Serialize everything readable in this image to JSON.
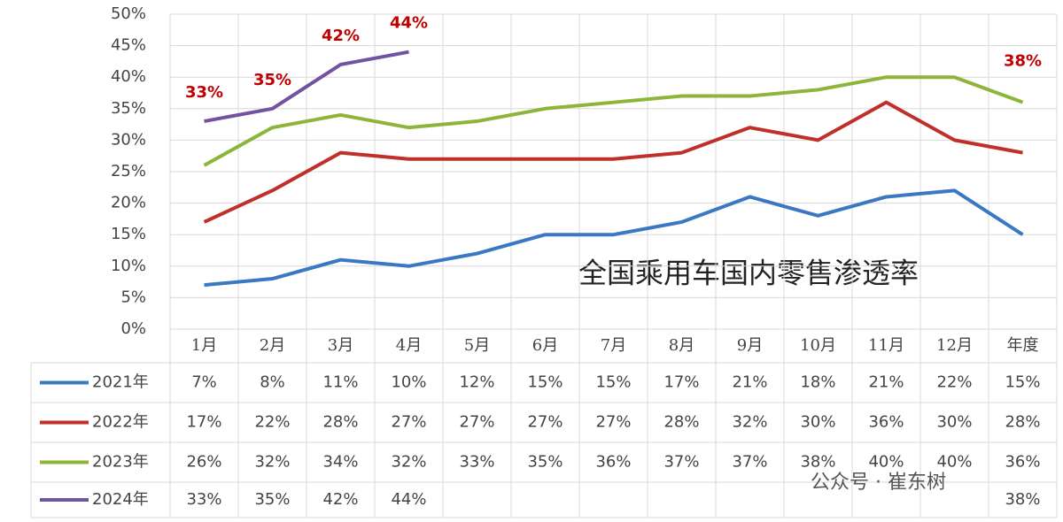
{
  "chart_data": {
    "type": "line",
    "title": "全国乘用车国内零售渗透率",
    "categories": [
      "1月",
      "2月",
      "3月",
      "4月",
      "5月",
      "6月",
      "7月",
      "8月",
      "9月",
      "10月",
      "11月",
      "12月",
      "年度"
    ],
    "ylim": [
      0,
      50
    ],
    "yticks": [
      {
        "value": 0,
        "label": "0%"
      },
      {
        "value": 5,
        "label": "5%"
      },
      {
        "value": 10,
        "label": "10%"
      },
      {
        "value": 15,
        "label": "15%"
      },
      {
        "value": 20,
        "label": "20%"
      },
      {
        "value": 25,
        "label": "25%"
      },
      {
        "value": 30,
        "label": "30%"
      },
      {
        "value": 35,
        "label": "35%"
      },
      {
        "value": 40,
        "label": "40%"
      },
      {
        "value": 45,
        "label": "45%"
      },
      {
        "value": 50,
        "label": "50%"
      }
    ],
    "grid": true,
    "series": [
      {
        "name": "2021年",
        "color": "#3a78c3",
        "values": [
          7,
          8,
          11,
          10,
          12,
          15,
          15,
          17,
          21,
          18,
          21,
          22,
          15
        ],
        "value_labels": [
          "7%",
          "8%",
          "11%",
          "10%",
          "12%",
          "15%",
          "15%",
          "17%",
          "21%",
          "18%",
          "21%",
          "22%",
          "15%"
        ]
      },
      {
        "name": "2022年",
        "color": "#c0302a",
        "values": [
          17,
          22,
          28,
          27,
          27,
          27,
          27,
          28,
          32,
          30,
          36,
          30,
          28
        ],
        "value_labels": [
          "17%",
          "22%",
          "28%",
          "27%",
          "27%",
          "27%",
          "27%",
          "28%",
          "32%",
          "30%",
          "36%",
          "30%",
          "28%"
        ]
      },
      {
        "name": "2023年",
        "color": "#8db53a",
        "values": [
          26,
          32,
          34,
          32,
          33,
          35,
          36,
          37,
          37,
          38,
          40,
          40,
          36
        ],
        "value_labels": [
          "26%",
          "32%",
          "34%",
          "32%",
          "33%",
          "35%",
          "36%",
          "37%",
          "37%",
          "38%",
          "40%",
          "40%",
          "36%"
        ]
      },
      {
        "name": "2024年",
        "color": "#7352a0",
        "values": [
          33,
          35,
          42,
          44,
          null,
          null,
          null,
          null,
          null,
          null,
          null,
          null,
          38
        ],
        "value_labels": [
          "33%",
          "35%",
          "42%",
          "44%",
          null,
          null,
          null,
          null,
          null,
          null,
          null,
          null,
          "38%"
        ]
      }
    ],
    "watermark": "公众号 · 崔东树"
  }
}
